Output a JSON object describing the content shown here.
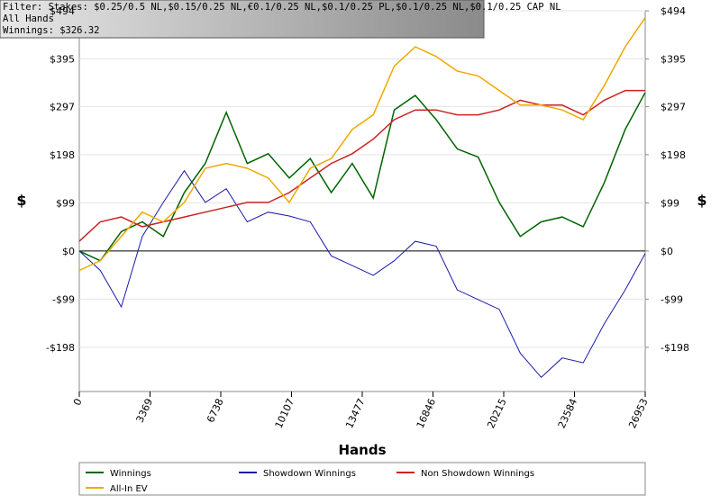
{
  "chart_data": {
    "type": "line",
    "annotations": [
      "Filter: Stakes: $0.25/0.5 NL,$0.15/0.25 NL,€0.1/0.25 NL,$0.1/0.25 PL,$0.1/0.25 NL,$0.1/0.25 CAP NL",
      "All Hands",
      "Winnings: $326.32"
    ],
    "x_label": "Hands",
    "y_label": "$",
    "y2_label": "$",
    "x": [
      0,
      1000,
      2000,
      3000,
      4000,
      5000,
      6000,
      7000,
      8000,
      9000,
      10000,
      11000,
      12000,
      13000,
      14000,
      15000,
      16000,
      17000,
      18000,
      19000,
      20000,
      21000,
      22000,
      23000,
      24000,
      25000,
      26000,
      26953
    ],
    "xlim": [
      0,
      26953
    ],
    "xticks": [
      0,
      3369,
      6738,
      10107,
      13477,
      16846,
      20215,
      23584,
      26953
    ],
    "ylim": [
      -289,
      494
    ],
    "yticks": [
      {
        "value": -198,
        "label": "-$198"
      },
      {
        "value": -99,
        "label": "-$99"
      },
      {
        "value": 0,
        "label": "$0"
      },
      {
        "value": 99,
        "label": "$99"
      },
      {
        "value": 198,
        "label": "$198"
      },
      {
        "value": 297,
        "label": "$297"
      },
      {
        "value": 395,
        "label": "$395"
      },
      {
        "value": 494,
        "label": "$494"
      }
    ],
    "y2lim": [
      -289,
      494
    ],
    "y2ticks": [
      {
        "value": -198,
        "label": "-$198"
      },
      {
        "value": -99,
        "label": "-$99"
      },
      {
        "value": 0,
        "label": "$0"
      },
      {
        "value": 99,
        "label": "$99"
      },
      {
        "value": 198,
        "label": "$198"
      },
      {
        "value": 297,
        "label": "$297"
      },
      {
        "value": 395,
        "label": "$395"
      },
      {
        "value": 494,
        "label": "$494"
      }
    ],
    "grid": true,
    "series": [
      {
        "name": "Winnings",
        "color": "#006400",
        "values": [
          0,
          -20,
          40,
          60,
          30,
          120,
          180,
          285,
          180,
          200,
          150,
          190,
          120,
          180,
          109,
          290,
          320,
          270,
          210,
          193,
          100,
          30,
          60,
          70,
          50,
          140,
          250,
          326
        ]
      },
      {
        "name": "Showdown Winnings",
        "color": "#1a1aa8",
        "values": [
          0,
          -40,
          -115,
          30,
          100,
          165,
          100,
          128,
          60,
          80,
          72,
          60,
          -10,
          -30,
          -50,
          -20,
          20,
          10,
          -80,
          -100,
          -120,
          -210,
          -260,
          -220,
          -230,
          -150,
          -80,
          -5
        ]
      },
      {
        "name": "Non Showdown Winnings",
        "color": "#cc2222",
        "values": [
          20,
          60,
          70,
          50,
          60,
          70,
          80,
          90,
          100,
          100,
          120,
          150,
          180,
          200,
          230,
          270,
          290,
          290,
          280,
          280,
          290,
          310,
          300,
          300,
          280,
          310,
          330,
          330
        ]
      },
      {
        "name": "All-In EV",
        "color": "#f0a800",
        "values": [
          -40,
          -20,
          30,
          80,
          60,
          100,
          170,
          180,
          170,
          150,
          100,
          170,
          190,
          250,
          280,
          380,
          420,
          400,
          370,
          360,
          330,
          300,
          300,
          290,
          270,
          340,
          420,
          480
        ]
      }
    ]
  }
}
